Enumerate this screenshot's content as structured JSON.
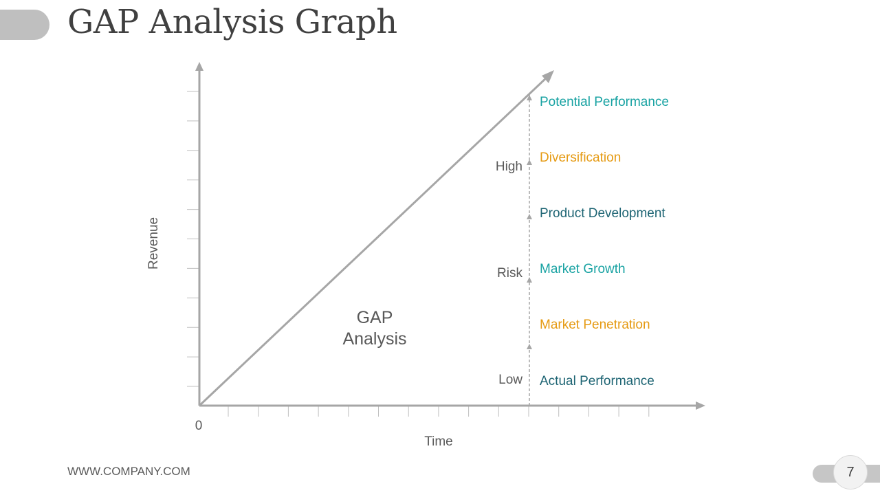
{
  "slide": {
    "title": "GAP Analysis Graph",
    "footer": "WWW.COMPANY.COM",
    "page_number": "7"
  },
  "diagram": {
    "y_axis_label": "Revenue",
    "x_axis_label": "Time",
    "origin_label": "0",
    "center_label_line1": "GAP",
    "center_label_line2": "Analysis",
    "risk_levels": [
      "High",
      "Risk",
      "Low"
    ],
    "strategies": [
      {
        "label": "Potential Performance",
        "color": "#17a2a2"
      },
      {
        "label": "Diversification",
        "color": "#e59a12"
      },
      {
        "label": "Product Development",
        "color": "#1d6473"
      },
      {
        "label": "Market Growth",
        "color": "#17a2a2"
      },
      {
        "label": "Market Penetration",
        "color": "#e59a12"
      },
      {
        "label": "Actual Performance",
        "color": "#1d6473"
      }
    ],
    "axis_color": "#a6a6a6",
    "text_color": "#595959"
  }
}
